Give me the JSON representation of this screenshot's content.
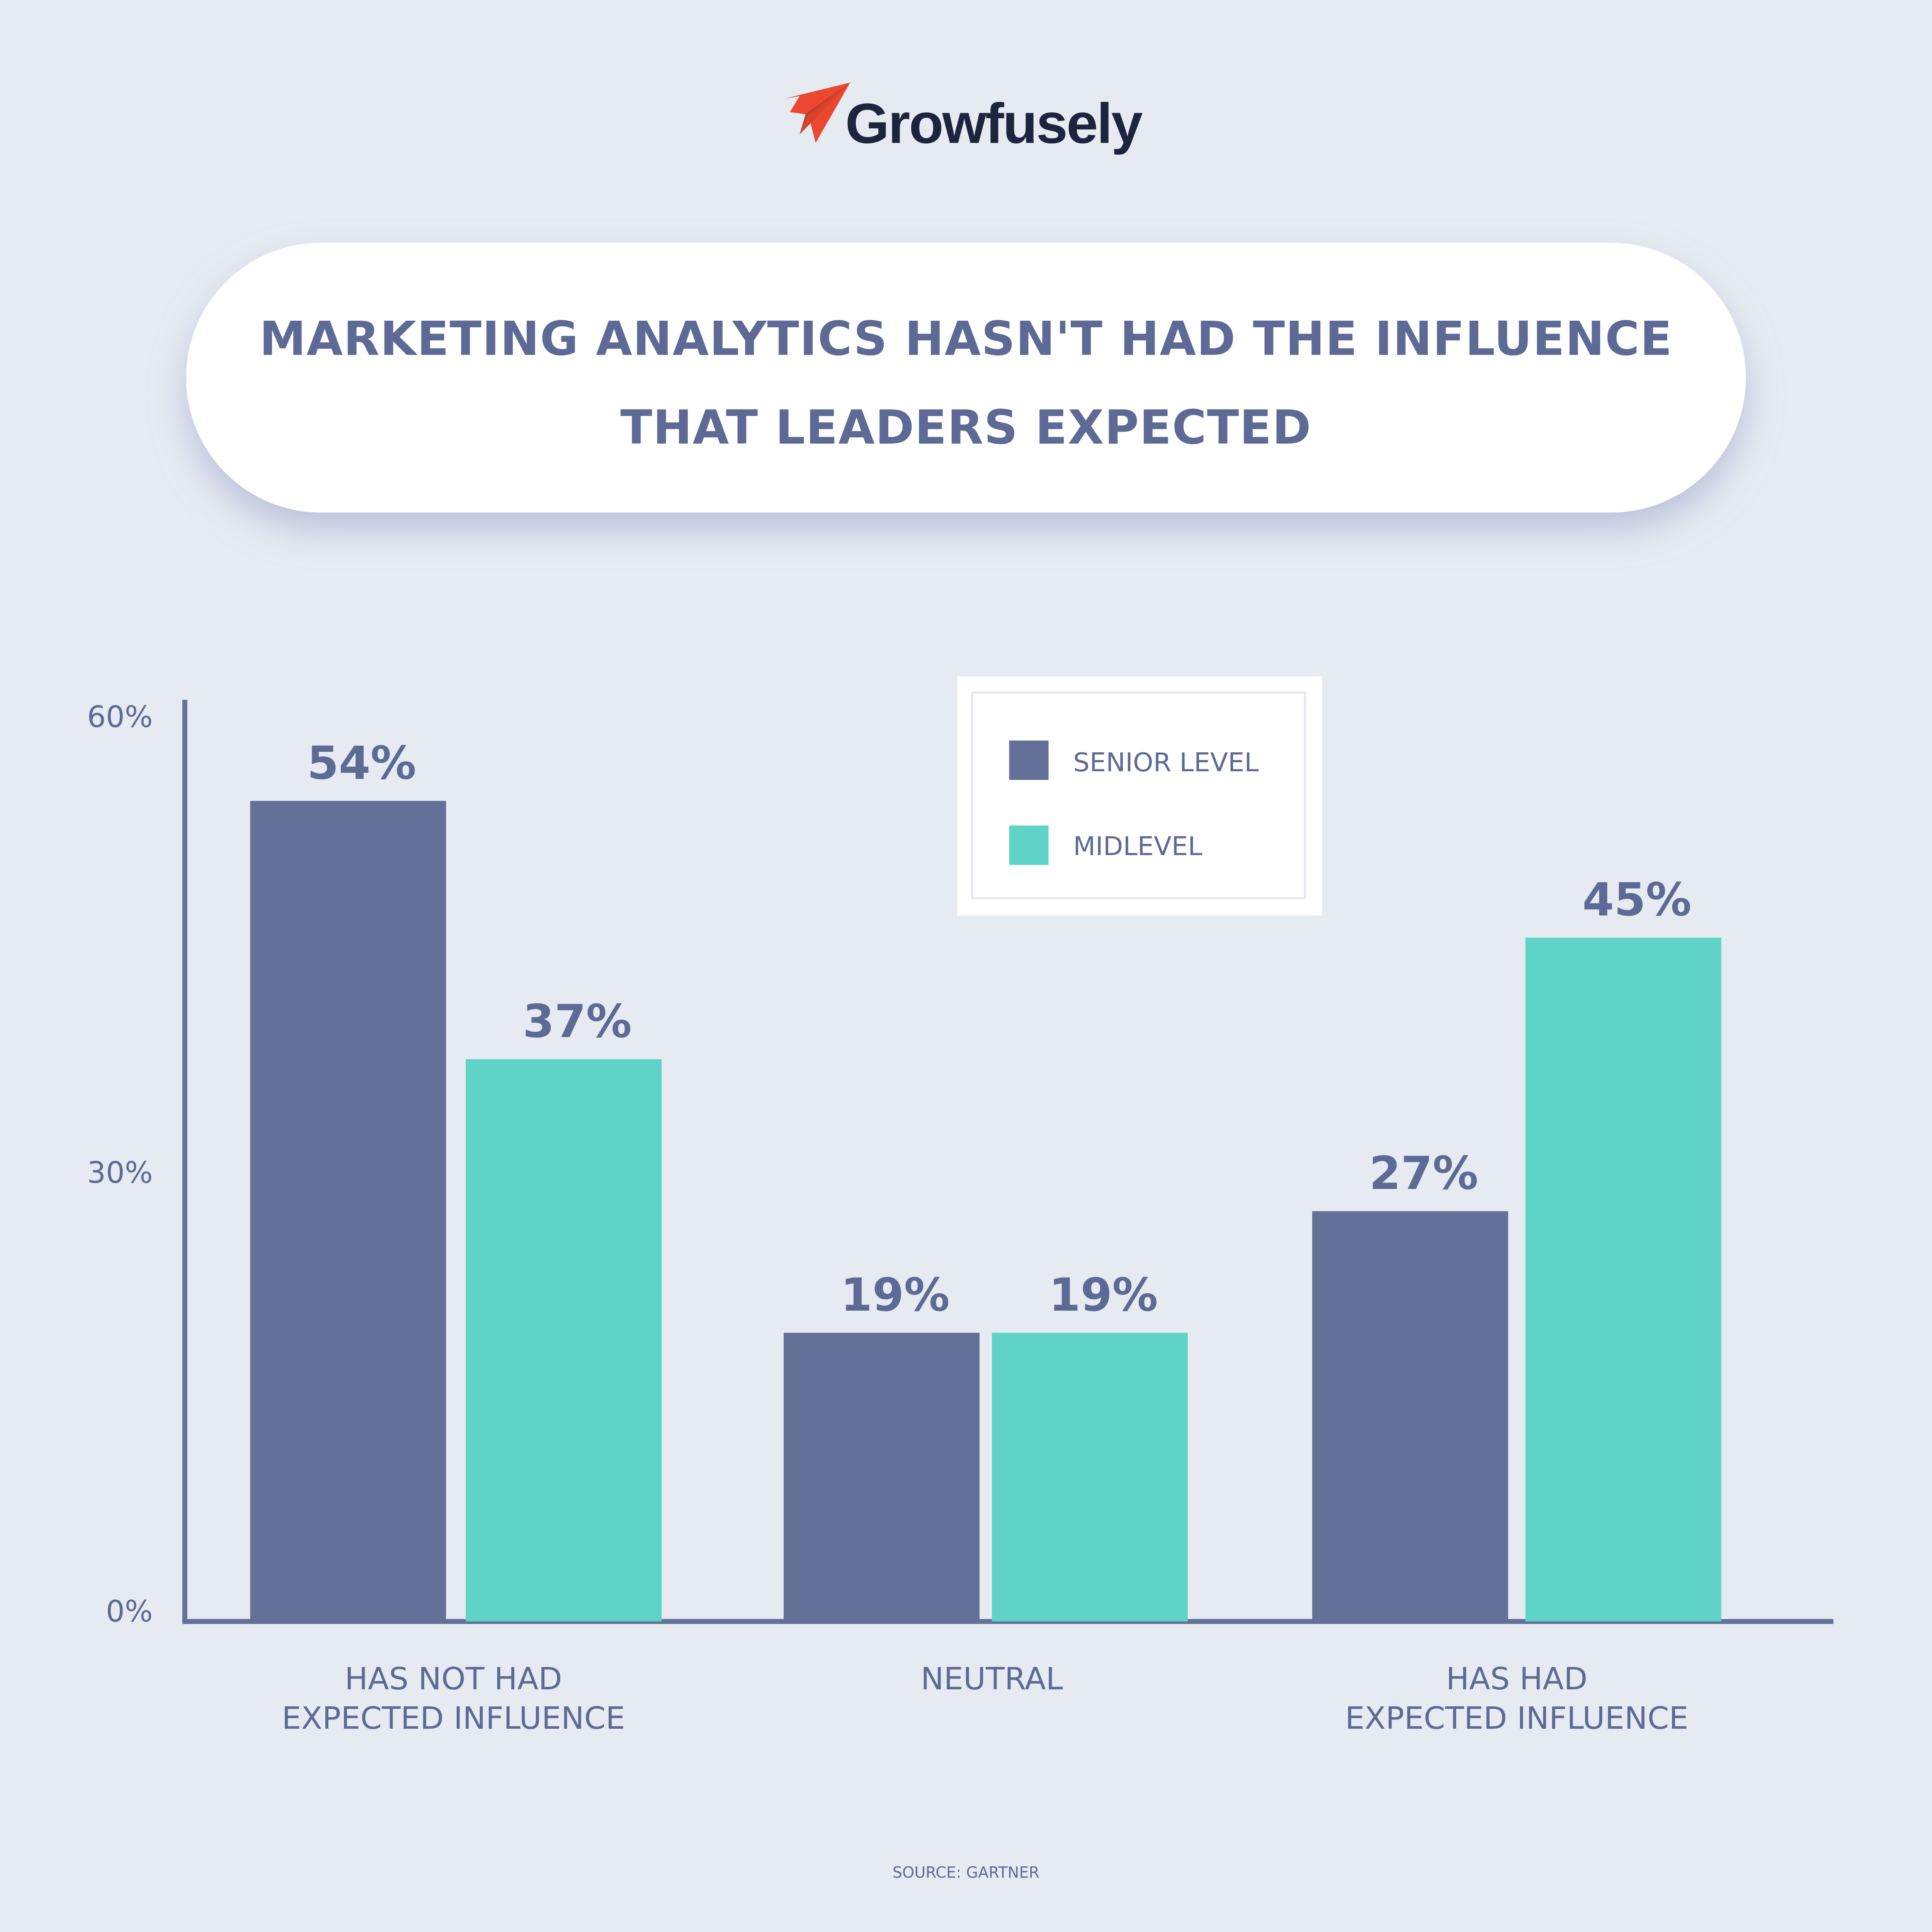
{
  "brand": {
    "name": "Growfusely",
    "logo_icon": "paper-plane-icon",
    "logo_color": "#ec4730",
    "text_color": "#1d243d"
  },
  "title": {
    "line1": "MARKETING ANALYTICS HASN'T HAD THE INFLUENCE",
    "line2": "THAT LEADERS EXPECTED"
  },
  "source": "SOURCE: GARTNER",
  "chart_data": {
    "type": "bar",
    "categories": [
      [
        "HAS NOT HAD",
        "EXPECTED INFLUENCE"
      ],
      [
        "NEUTRAL"
      ],
      [
        "HAS HAD",
        "EXPECTED INFLUENCE"
      ]
    ],
    "series": [
      {
        "name": "SENIOR LEVEL",
        "values": [
          54,
          19,
          27
        ],
        "labels": [
          "54%",
          "19%",
          "27%"
        ],
        "color": "#637097"
      },
      {
        "name": "MIDLEVEL",
        "values": [
          37,
          19,
          45
        ],
        "labels": [
          "37%",
          "19%",
          "45%"
        ],
        "color": "#5fd3c6"
      }
    ],
    "yticks": [
      {
        "value": 0,
        "label": "0%"
      },
      {
        "value": 30,
        "label": "30%"
      },
      {
        "value": 60,
        "label": "60%"
      }
    ],
    "ylim": [
      0,
      60
    ],
    "grid": false,
    "legend": "top-center",
    "text_color": "#5d6a95"
  }
}
